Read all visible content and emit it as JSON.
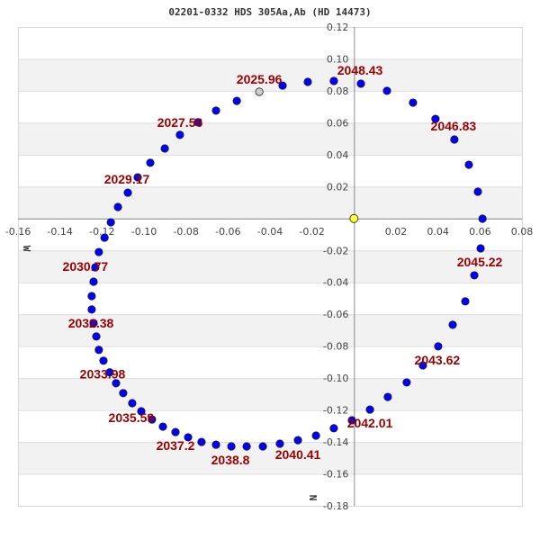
{
  "chart_data": {
    "type": "scatter",
    "title": "02201-0332 HDS 305Aa,Ab (HD 14473)",
    "xlim": [
      -0.16,
      0.08
    ],
    "ylim": [
      -0.18,
      0.12
    ],
    "xticks": [
      "-0.16",
      "-0.14",
      "-0.12",
      "-0.10",
      "-0.08",
      "-0.06",
      "-0.04",
      "-0.02",
      "0.02",
      "0.04",
      "0.06",
      "0.08"
    ],
    "xtick_values": [
      -0.16,
      -0.14,
      -0.12,
      -0.1,
      -0.08,
      -0.06,
      -0.04,
      -0.02,
      0.02,
      0.04,
      0.06,
      0.08
    ],
    "yticks": [
      "0.12",
      "0.10",
      "0.08",
      "0.06",
      "0.04",
      "0.02",
      "-0.02",
      "-0.04",
      "-0.06",
      "-0.08",
      "-0.10",
      "-0.12",
      "-0.14",
      "-0.16",
      "-0.18"
    ],
    "ytick_values": [
      0.12,
      0.1,
      0.08,
      0.06,
      0.04,
      0.02,
      -0.02,
      -0.04,
      -0.06,
      -0.08,
      -0.1,
      -0.12,
      -0.14,
      -0.16,
      -0.18
    ],
    "xlabel": "W",
    "ylabel": "N",
    "grid": "horizontal alternating bands",
    "colors": {
      "orbit_point": "#0000ff",
      "current_point": "#cccccc",
      "primary_star": "#ffff33",
      "label": "#990000",
      "band": "#f2f2f2"
    },
    "primary": {
      "x": 0,
      "y": 0
    },
    "current_point": {
      "x": -0.0451,
      "y": 0.0794
    },
    "points": [
      [
        -0.0558,
        0.0737
      ],
      [
        -0.0657,
        0.0676
      ],
      [
        -0.0743,
        0.0603
      ],
      [
        -0.0829,
        0.0524
      ],
      [
        -0.0901,
        0.0439
      ],
      [
        -0.097,
        0.0349
      ],
      [
        -0.103,
        0.0258
      ],
      [
        -0.1077,
        0.0162
      ],
      [
        -0.1124,
        0.0072
      ],
      [
        -0.1158,
        -0.0024
      ],
      [
        -0.1188,
        -0.012
      ],
      [
        -0.1215,
        -0.021
      ],
      [
        -0.1232,
        -0.0306
      ],
      [
        -0.124,
        -0.0396
      ],
      [
        -0.1249,
        -0.0486
      ],
      [
        -0.1249,
        -0.057
      ],
      [
        -0.124,
        -0.0655
      ],
      [
        -0.1227,
        -0.0739
      ],
      [
        -0.1215,
        -0.0823
      ],
      [
        -0.1193,
        -0.0891
      ],
      [
        -0.1163,
        -0.0964
      ],
      [
        -0.1133,
        -0.1032
      ],
      [
        -0.1099,
        -0.1094
      ],
      [
        -0.1056,
        -0.1157
      ],
      [
        -0.1013,
        -0.1208
      ],
      [
        -0.0962,
        -0.1259
      ],
      [
        -0.091,
        -0.1304
      ],
      [
        -0.085,
        -0.1338
      ],
      [
        -0.079,
        -0.1371
      ],
      [
        -0.0726,
        -0.14
      ],
      [
        -0.0657,
        -0.1417
      ],
      [
        -0.0584,
        -0.1428
      ],
      [
        -0.0511,
        -0.1428
      ],
      [
        -0.0434,
        -0.1428
      ],
      [
        -0.0353,
        -0.1411
      ],
      [
        -0.0267,
        -0.1389
      ],
      [
        -0.0181,
        -0.136
      ],
      [
        -0.0096,
        -0.1314
      ],
      [
        -0.001,
        -0.1264
      ],
      [
        0.0076,
        -0.1197
      ],
      [
        0.0161,
        -0.1118
      ],
      [
        0.0251,
        -0.1027
      ],
      [
        0.0328,
        -0.092
      ],
      [
        0.0401,
        -0.0801
      ],
      [
        0.047,
        -0.0666
      ],
      [
        0.053,
        -0.0519
      ],
      [
        0.0573,
        -0.0356
      ],
      [
        0.0603,
        -0.0187
      ],
      [
        0.0612,
        -0.0001
      ],
      [
        0.059,
        0.0168
      ],
      [
        0.0547,
        0.0337
      ],
      [
        0.0478,
        0.0495
      ],
      [
        0.0388,
        0.0624
      ],
      [
        0.0281,
        0.0726
      ],
      [
        0.0157,
        0.08
      ],
      [
        0.0033,
        0.0845
      ],
      [
        -0.0096,
        0.0862
      ],
      [
        -0.022,
        0.0856
      ],
      [
        -0.034,
        0.0833
      ]
    ],
    "epoch_labels": [
      {
        "text": "2025.96",
        "x": -0.0451,
        "y": 0.0794
      },
      {
        "text": "2027.56",
        "x": -0.0743,
        "y": 0.0603
      },
      {
        "text": "2029.17",
        "x": -0.103,
        "y": 0.0258
      },
      {
        "text": "2030.77",
        "x": -0.1232,
        "y": -0.0306
      },
      {
        "text": "2032.38",
        "x": -0.124,
        "y": -0.0655
      },
      {
        "text": "2033.98",
        "x": -0.1163,
        "y": -0.0964
      },
      {
        "text": "2035.59",
        "x": -0.0962,
        "y": -0.1259
      },
      {
        "text": "2037.2",
        "x": -0.079,
        "y": -0.1371
      },
      {
        "text": "2038.8",
        "x": -0.0584,
        "y": -0.1428
      },
      {
        "text": "2040.41",
        "x": -0.0267,
        "y": -0.1389
      },
      {
        "text": "2042.01",
        "x": -0.001,
        "y": -0.1264
      },
      {
        "text": "2043.62",
        "x": 0.0328,
        "y": -0.092
      },
      {
        "text": "2045.22",
        "x": 0.0573,
        "y": -0.0356
      },
      {
        "text": "2046.83",
        "x": 0.0388,
        "y": 0.0624
      },
      {
        "text": "2048.43",
        "x": 0.0033,
        "y": 0.0845
      }
    ]
  }
}
